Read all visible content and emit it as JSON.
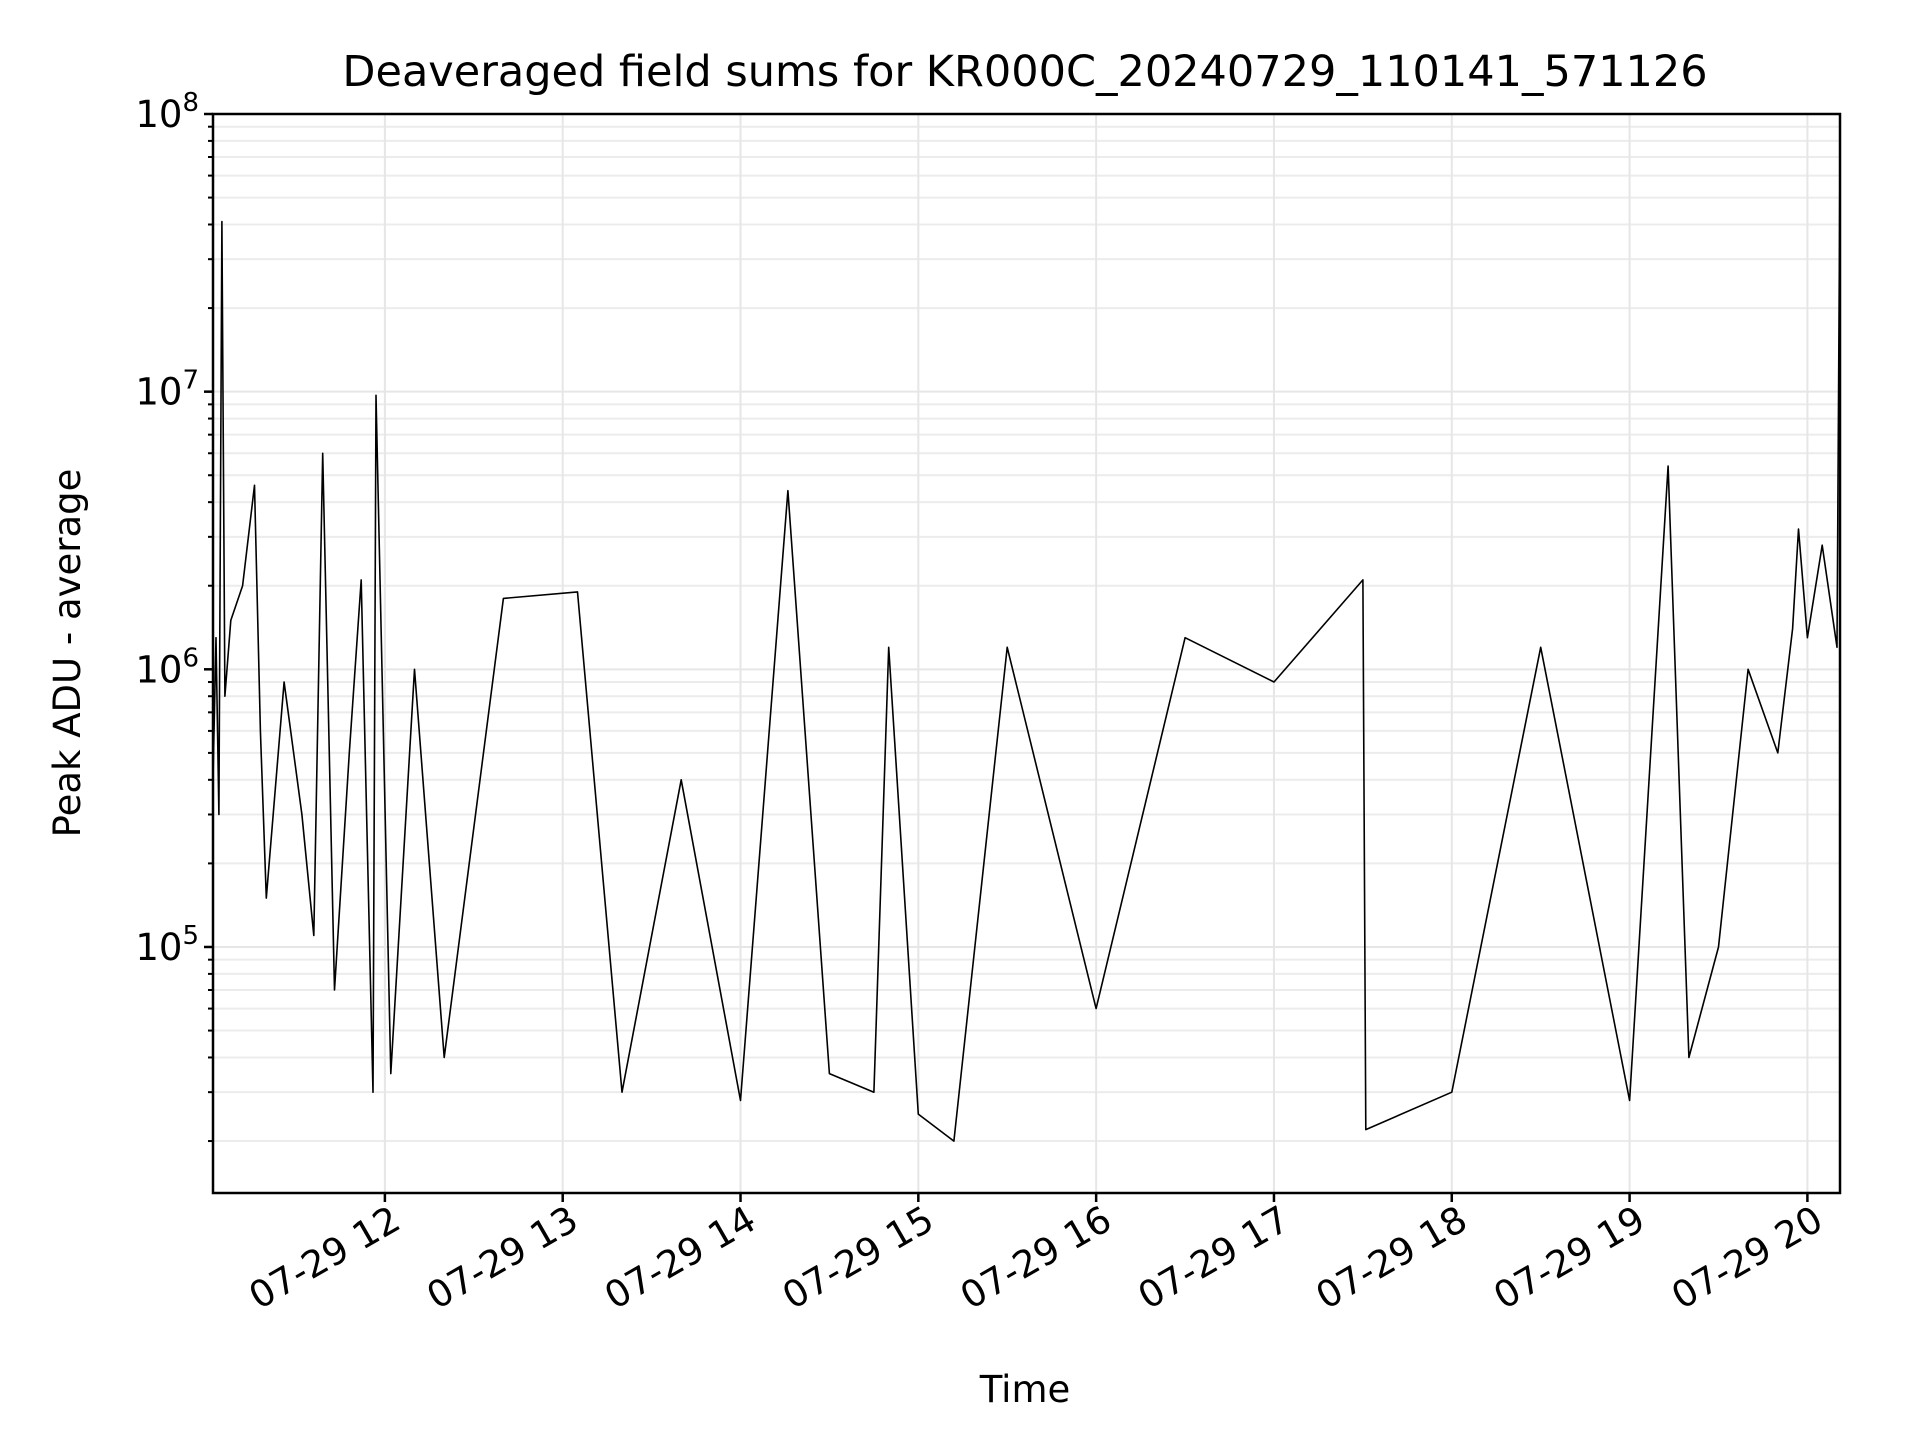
{
  "chart_data": {
    "type": "line",
    "title": "Deaveraged field sums for KR000C_20240729_110141_571126",
    "xlabel": "Time",
    "ylabel": "Peak ADU - average",
    "y_scale": "log",
    "ylim": [
      13000,
      100000000
    ],
    "xlim": [
      "2024-07-29T11:02",
      "2024-07-29T20:11"
    ],
    "grid": true,
    "line_color": "#000000",
    "x_ticks": [
      {
        "t": "2024-07-29T12:00",
        "label": "07-29 12"
      },
      {
        "t": "2024-07-29T13:00",
        "label": "07-29 13"
      },
      {
        "t": "2024-07-29T14:00",
        "label": "07-29 14"
      },
      {
        "t": "2024-07-29T15:00",
        "label": "07-29 15"
      },
      {
        "t": "2024-07-29T16:00",
        "label": "07-29 16"
      },
      {
        "t": "2024-07-29T17:00",
        "label": "07-29 17"
      },
      {
        "t": "2024-07-29T18:00",
        "label": "07-29 18"
      },
      {
        "t": "2024-07-29T19:00",
        "label": "07-29 19"
      },
      {
        "t": "2024-07-29T20:00",
        "label": "07-29 20"
      }
    ],
    "y_ticks": [
      {
        "value": 100000,
        "base": "10",
        "exp": "5"
      },
      {
        "value": 1000000,
        "base": "10",
        "exp": "6"
      },
      {
        "value": 10000000,
        "base": "10",
        "exp": "7"
      },
      {
        "value": 100000000,
        "base": "10",
        "exp": "8"
      }
    ],
    "series": [
      {
        "points": [
          [
            "2024-07-29T11:02",
            400000
          ],
          [
            "2024-07-29T11:03",
            1300000
          ],
          [
            "2024-07-29T11:04",
            300000
          ],
          [
            "2024-07-29T11:05",
            41000000
          ],
          [
            "2024-07-29T11:06",
            800000
          ],
          [
            "2024-07-29T11:08",
            1500000
          ],
          [
            "2024-07-29T11:12",
            2000000
          ],
          [
            "2024-07-29T11:16",
            4600000
          ],
          [
            "2024-07-29T11:18",
            600000
          ],
          [
            "2024-07-29T11:20",
            150000
          ],
          [
            "2024-07-29T11:26",
            900000
          ],
          [
            "2024-07-29T11:32",
            300000
          ],
          [
            "2024-07-29T11:36",
            110000
          ],
          [
            "2024-07-29T11:39",
            6000000
          ],
          [
            "2024-07-29T11:43",
            70000
          ],
          [
            "2024-07-29T11:48",
            500000
          ],
          [
            "2024-07-29T11:52",
            2100000
          ],
          [
            "2024-07-29T11:56",
            30000
          ],
          [
            "2024-07-29T11:57",
            9700000
          ],
          [
            "2024-07-29T12:02",
            35000
          ],
          [
            "2024-07-29T12:10",
            1000000
          ],
          [
            "2024-07-29T12:20",
            40000
          ],
          [
            "2024-07-29T12:40",
            1800000
          ],
          [
            "2024-07-29T13:05",
            1900000
          ],
          [
            "2024-07-29T13:20",
            30000
          ],
          [
            "2024-07-29T13:40",
            400000
          ],
          [
            "2024-07-29T14:00",
            28000
          ],
          [
            "2024-07-29T14:16",
            4400000
          ],
          [
            "2024-07-29T14:30",
            35000
          ],
          [
            "2024-07-29T14:45",
            30000
          ],
          [
            "2024-07-29T14:50",
            1200000
          ],
          [
            "2024-07-29T15:00",
            25000
          ],
          [
            "2024-07-29T15:12",
            20000
          ],
          [
            "2024-07-29T15:30",
            1200000
          ],
          [
            "2024-07-29T16:00",
            60000
          ],
          [
            "2024-07-29T16:30",
            1300000
          ],
          [
            "2024-07-29T17:00",
            900000
          ],
          [
            "2024-07-29T17:30",
            2100000
          ],
          [
            "2024-07-29T17:31",
            22000
          ],
          [
            "2024-07-29T18:00",
            30000
          ],
          [
            "2024-07-29T18:30",
            1200000
          ],
          [
            "2024-07-29T19:00",
            28000
          ],
          [
            "2024-07-29T19:13",
            5400000
          ],
          [
            "2024-07-29T19:20",
            40000
          ],
          [
            "2024-07-29T19:30",
            100000
          ],
          [
            "2024-07-29T19:40",
            1000000
          ],
          [
            "2024-07-29T19:50",
            500000
          ],
          [
            "2024-07-29T19:55",
            1400000
          ],
          [
            "2024-07-29T19:57",
            3200000
          ],
          [
            "2024-07-29T20:00",
            1300000
          ],
          [
            "2024-07-29T20:05",
            2800000
          ],
          [
            "2024-07-29T20:10",
            1200000
          ],
          [
            "2024-07-29T20:11",
            70000000
          ]
        ]
      }
    ]
  }
}
